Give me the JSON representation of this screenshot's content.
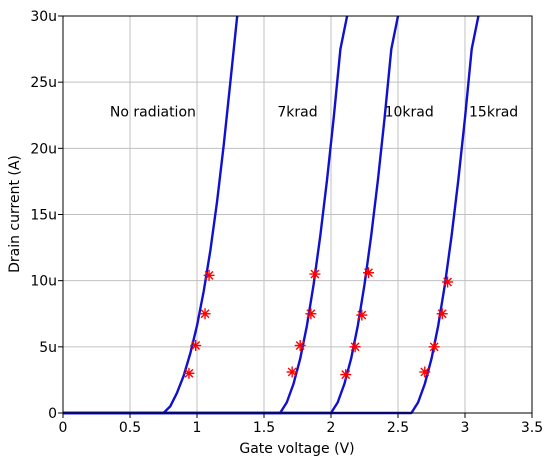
{
  "chart_data": {
    "type": "line",
    "title": "",
    "xlabel": "Gate voltage (V)",
    "ylabel": "Drain current (A)",
    "xlim": [
      0,
      3.5
    ],
    "ylim": [
      0,
      30
    ],
    "x_ticks": [
      {
        "value": 0,
        "label": "0"
      },
      {
        "value": 0.5,
        "label": "0.5"
      },
      {
        "value": 1,
        "label": "1"
      },
      {
        "value": 1.5,
        "label": "1.5"
      },
      {
        "value": 2,
        "label": "2"
      },
      {
        "value": 2.5,
        "label": "2.5"
      },
      {
        "value": 3,
        "label": "3"
      },
      {
        "value": 3.5,
        "label": "3.5"
      }
    ],
    "y_ticks": [
      {
        "value": 0,
        "label": "0"
      },
      {
        "value": 5,
        "label": "5u"
      },
      {
        "value": 10,
        "label": "10u"
      },
      {
        "value": 15,
        "label": "15u"
      },
      {
        "value": 20,
        "label": "20u"
      },
      {
        "value": 25,
        "label": "25u"
      },
      {
        "value": 30,
        "label": "30u"
      }
    ],
    "grid": true,
    "line_color": "#1010d0",
    "marker_color": "#ff0000",
    "series": [
      {
        "curve": {
          "x": [
            0,
            0.75,
            0.8,
            0.85,
            0.9,
            0.95,
            1.0,
            1.05,
            1.1,
            1.15,
            1.2,
            1.25,
            1.3
          ],
          "y": [
            0,
            0,
            0.5,
            1.5,
            2.8,
            4.5,
            6.6,
            9.2,
            12.3,
            16.0,
            20.3,
            25.1,
            30
          ]
        },
        "markers": {
          "x": [
            0.94,
            0.99,
            1.06,
            1.09
          ],
          "y": [
            3.0,
            5.1,
            7.5,
            10.4
          ]
        }
      },
      {
        "curve": {
          "x": [
            0,
            1.62,
            1.67,
            1.72,
            1.77,
            1.82,
            1.87,
            1.92,
            1.97,
            2.02,
            2.07,
            2.12
          ],
          "y": [
            0,
            0,
            0.8,
            2.2,
            4.1,
            6.6,
            9.7,
            13.4,
            17.6,
            22.3,
            27.5,
            30
          ]
        },
        "markers": {
          "x": [
            1.71,
            1.77,
            1.85,
            1.88
          ],
          "y": [
            3.1,
            5.1,
            7.5,
            10.5
          ]
        }
      },
      {
        "curve": {
          "x": [
            0,
            2.0,
            2.05,
            2.1,
            2.15,
            2.2,
            2.25,
            2.3,
            2.35,
            2.4,
            2.45,
            2.5
          ],
          "y": [
            0,
            0,
            0.8,
            2.2,
            4.1,
            6.6,
            9.7,
            13.4,
            17.6,
            22.3,
            27.5,
            30
          ]
        },
        "markers": {
          "x": [
            2.11,
            2.18,
            2.23,
            2.28
          ],
          "y": [
            2.9,
            5.0,
            7.4,
            10.6
          ]
        }
      },
      {
        "curve": {
          "x": [
            0,
            2.6,
            2.65,
            2.7,
            2.75,
            2.8,
            2.85,
            2.9,
            2.95,
            3.0,
            3.05,
            3.1
          ],
          "y": [
            0,
            0,
            0.8,
            2.2,
            4.1,
            6.6,
            9.7,
            13.4,
            17.6,
            22.3,
            27.5,
            30
          ]
        },
        "markers": {
          "x": [
            2.7,
            2.77,
            2.83,
            2.87
          ],
          "y": [
            3.1,
            5.0,
            7.5,
            9.9
          ]
        }
      }
    ],
    "annotations": [
      {
        "text": "No radiation",
        "x": 0.35,
        "y": 22.8
      },
      {
        "text": "7krad",
        "x": 1.6,
        "y": 22.8
      },
      {
        "text": "10krad",
        "x": 2.4,
        "y": 22.8
      },
      {
        "text": "15krad",
        "x": 3.03,
        "y": 22.8
      }
    ]
  }
}
